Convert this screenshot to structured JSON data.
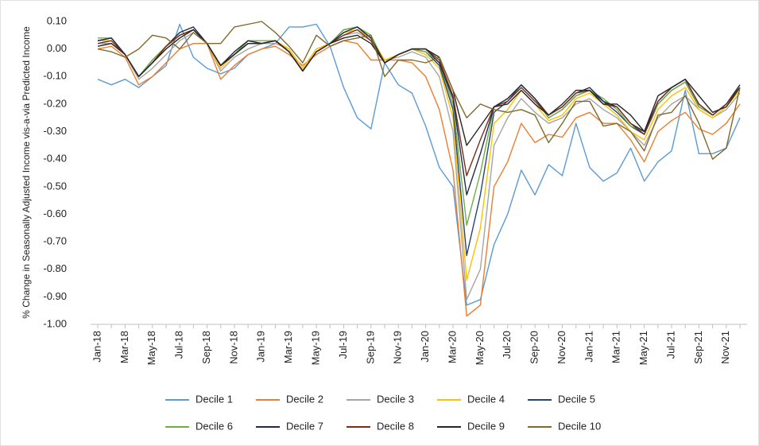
{
  "chart_data": {
    "type": "line",
    "y_label": "% Change in Seasonally Adjusted Income vis-a-via Predicted Income",
    "categories": [
      "Jan-18",
      null,
      "Mar-18",
      null,
      "May-18",
      null,
      "Jul-18",
      null,
      "Sep-18",
      null,
      "Nov-18",
      null,
      "Jan-19",
      null,
      "Mar-19",
      null,
      "May-19",
      null,
      "Jul-19",
      null,
      "Sep-19",
      null,
      "Nov-19",
      null,
      "Jan-20",
      null,
      "Mar-20",
      null,
      "May-20",
      null,
      "Jul-20",
      null,
      "Sep-20",
      null,
      "Nov-20",
      null,
      "Jan-21",
      null,
      "Mar-21",
      null,
      "May-21",
      null,
      "Jul-21",
      null,
      "Sep-21",
      null,
      "Nov-21",
      null
    ],
    "ylim": [
      -1.0,
      0.1
    ],
    "yticks": [
      {
        "value": 0.1,
        "label": "0.10"
      },
      {
        "value": 0.0,
        "label": "0.00"
      },
      {
        "value": -0.1,
        "label": "-0.10"
      },
      {
        "value": -0.2,
        "label": "-0.20"
      },
      {
        "value": -0.3,
        "label": "-0.30"
      },
      {
        "value": -0.4,
        "label": "-0.40"
      },
      {
        "value": -0.5,
        "label": "-0.50"
      },
      {
        "value": -0.6,
        "label": "-0.60"
      },
      {
        "value": -0.7,
        "label": "-0.70"
      },
      {
        "value": -0.8,
        "label": "-0.80"
      },
      {
        "value": -0.9,
        "label": "-0.90"
      },
      {
        "value": -1.0,
        "label": "-1.00"
      }
    ],
    "grid": false,
    "legend": "bottom",
    "series": [
      {
        "name": "Decile 1",
        "color": "#5b9bd5",
        "values": [
          -0.11,
          -0.13,
          -0.11,
          -0.14,
          -0.1,
          -0.06,
          0.09,
          -0.03,
          -0.07,
          -0.09,
          -0.07,
          -0.02,
          0.0,
          0.02,
          0.08,
          0.08,
          0.09,
          0.01,
          -0.14,
          -0.25,
          -0.29,
          -0.05,
          -0.13,
          -0.16,
          -0.28,
          -0.43,
          -0.5,
          -0.93,
          -0.91,
          -0.71,
          -0.6,
          -0.44,
          -0.53,
          -0.42,
          -0.46,
          -0.27,
          -0.43,
          -0.48,
          -0.45,
          -0.36,
          -0.48,
          -0.41,
          -0.37,
          -0.15,
          -0.38,
          -0.38,
          -0.36,
          -0.25
        ]
      },
      {
        "name": "Decile 2",
        "color": "#ed7d31",
        "values": [
          0.0,
          0.01,
          -0.03,
          -0.13,
          -0.1,
          -0.05,
          0.0,
          0.02,
          0.02,
          -0.11,
          -0.06,
          -0.02,
          0.0,
          0.01,
          -0.02,
          -0.06,
          -0.02,
          0.01,
          0.03,
          0.02,
          -0.04,
          -0.04,
          -0.04,
          -0.05,
          -0.1,
          -0.22,
          -0.44,
          -0.97,
          -0.93,
          -0.5,
          -0.41,
          -0.27,
          -0.34,
          -0.31,
          -0.32,
          -0.25,
          -0.23,
          -0.27,
          -0.27,
          -0.33,
          -0.41,
          -0.3,
          -0.26,
          -0.23,
          -0.29,
          -0.31,
          -0.27,
          -0.2
        ]
      },
      {
        "name": "Decile 3",
        "color": "#a5a5a5",
        "values": [
          0.02,
          0.02,
          -0.02,
          -0.11,
          -0.07,
          -0.02,
          0.03,
          0.06,
          0.02,
          -0.08,
          -0.03,
          0.0,
          0.02,
          0.02,
          0.0,
          -0.07,
          0.0,
          0.02,
          0.05,
          0.06,
          0.03,
          -0.04,
          -0.03,
          -0.01,
          -0.03,
          -0.1,
          -0.3,
          -0.91,
          -0.8,
          -0.35,
          -0.25,
          -0.18,
          -0.23,
          -0.27,
          -0.25,
          -0.2,
          -0.18,
          -0.22,
          -0.25,
          -0.3,
          -0.35,
          -0.25,
          -0.2,
          -0.17,
          -0.22,
          -0.25,
          -0.22,
          -0.16
        ]
      },
      {
        "name": "Decile 4",
        "color": "#ffc000",
        "values": [
          0.03,
          0.03,
          -0.02,
          -0.1,
          -0.05,
          0.0,
          0.04,
          0.07,
          0.02,
          -0.07,
          -0.02,
          0.02,
          0.02,
          0.03,
          0.0,
          -0.07,
          0.0,
          0.02,
          0.06,
          0.07,
          0.04,
          -0.04,
          -0.02,
          0.0,
          -0.02,
          -0.07,
          -0.25,
          -0.84,
          -0.65,
          -0.27,
          -0.22,
          -0.15,
          -0.2,
          -0.26,
          -0.24,
          -0.18,
          -0.16,
          -0.2,
          -0.24,
          -0.3,
          -0.33,
          -0.22,
          -0.17,
          -0.14,
          -0.22,
          -0.25,
          -0.21,
          -0.15
        ]
      },
      {
        "name": "Decile 5",
        "color": "#264478",
        "values": [
          0.03,
          0.04,
          -0.02,
          -0.1,
          -0.04,
          0.01,
          0.05,
          0.07,
          0.02,
          -0.06,
          -0.02,
          0.03,
          0.02,
          0.03,
          -0.01,
          -0.08,
          -0.01,
          0.02,
          0.07,
          0.08,
          0.04,
          -0.05,
          -0.02,
          0.0,
          -0.01,
          -0.06,
          -0.22,
          -0.75,
          -0.53,
          -0.23,
          -0.19,
          -0.13,
          -0.18,
          -0.25,
          -0.22,
          -0.17,
          -0.15,
          -0.19,
          -0.23,
          -0.28,
          -0.31,
          -0.2,
          -0.15,
          -0.12,
          -0.21,
          -0.24,
          -0.2,
          -0.14
        ]
      },
      {
        "name": "Decile 6",
        "color": "#70ad47",
        "values": [
          0.04,
          0.04,
          -0.02,
          -0.1,
          -0.04,
          0.01,
          0.05,
          0.07,
          0.02,
          -0.06,
          -0.02,
          0.03,
          0.03,
          0.03,
          -0.01,
          -0.08,
          -0.01,
          0.02,
          0.07,
          0.08,
          0.05,
          -0.05,
          -0.02,
          0.0,
          -0.01,
          -0.05,
          -0.2,
          -0.64,
          -0.45,
          -0.21,
          -0.18,
          -0.13,
          -0.18,
          -0.25,
          -0.22,
          -0.17,
          -0.15,
          -0.18,
          -0.22,
          -0.28,
          -0.3,
          -0.2,
          -0.15,
          -0.12,
          -0.21,
          -0.24,
          -0.2,
          -0.14
        ]
      },
      {
        "name": "Decile 7",
        "color": "#1f2a44",
        "values": [
          0.03,
          0.04,
          -0.02,
          -0.1,
          -0.05,
          0.01,
          0.06,
          0.08,
          0.02,
          -0.06,
          -0.01,
          0.03,
          0.02,
          0.03,
          -0.01,
          -0.08,
          -0.01,
          0.02,
          0.06,
          0.08,
          0.04,
          -0.05,
          -0.02,
          0.0,
          0.0,
          -0.05,
          -0.18,
          -0.53,
          -0.38,
          -0.21,
          -0.18,
          -0.13,
          -0.18,
          -0.24,
          -0.21,
          -0.16,
          -0.14,
          -0.19,
          -0.21,
          -0.27,
          -0.3,
          -0.19,
          -0.14,
          -0.11,
          -0.2,
          -0.24,
          -0.2,
          -0.13
        ]
      },
      {
        "name": "Decile 8",
        "color": "#7b2c1a",
        "values": [
          0.02,
          0.03,
          -0.02,
          -0.1,
          -0.05,
          0.01,
          0.05,
          0.07,
          0.02,
          -0.06,
          -0.02,
          0.02,
          0.02,
          0.03,
          -0.01,
          -0.08,
          -0.01,
          0.02,
          0.05,
          0.07,
          0.03,
          -0.05,
          -0.02,
          0.0,
          0.0,
          -0.04,
          -0.17,
          -0.46,
          -0.33,
          -0.21,
          -0.19,
          -0.14,
          -0.19,
          -0.24,
          -0.21,
          -0.16,
          -0.15,
          -0.2,
          -0.21,
          -0.27,
          -0.31,
          -0.19,
          -0.14,
          -0.11,
          -0.2,
          -0.24,
          -0.2,
          -0.14
        ]
      },
      {
        "name": "Decile 9",
        "color": "#262626",
        "values": [
          0.01,
          0.02,
          -0.02,
          -0.1,
          -0.05,
          0.0,
          0.04,
          0.07,
          0.02,
          -0.06,
          -0.02,
          0.02,
          0.02,
          0.03,
          -0.01,
          -0.08,
          -0.01,
          0.02,
          0.04,
          0.05,
          0.02,
          -0.05,
          -0.02,
          0.0,
          0.0,
          -0.03,
          -0.15,
          -0.35,
          -0.28,
          -0.21,
          -0.2,
          -0.15,
          -0.2,
          -0.24,
          -0.2,
          -0.15,
          -0.15,
          -0.2,
          -0.2,
          -0.24,
          -0.3,
          -0.17,
          -0.14,
          -0.11,
          -0.17,
          -0.23,
          -0.21,
          -0.14
        ]
      },
      {
        "name": "Decile 10",
        "color": "#7f6a2a",
        "values": [
          0.0,
          -0.01,
          -0.03,
          0.0,
          0.05,
          0.04,
          0.0,
          0.06,
          0.02,
          0.02,
          0.08,
          0.09,
          0.1,
          0.06,
          0.01,
          -0.05,
          0.05,
          0.01,
          0.03,
          0.04,
          0.05,
          -0.1,
          -0.04,
          -0.04,
          -0.05,
          -0.03,
          -0.15,
          -0.25,
          -0.2,
          -0.22,
          -0.23,
          -0.22,
          -0.24,
          -0.34,
          -0.27,
          -0.19,
          -0.19,
          -0.28,
          -0.27,
          -0.3,
          -0.37,
          -0.24,
          -0.23,
          -0.17,
          -0.27,
          -0.4,
          -0.36,
          -0.14
        ]
      }
    ]
  }
}
